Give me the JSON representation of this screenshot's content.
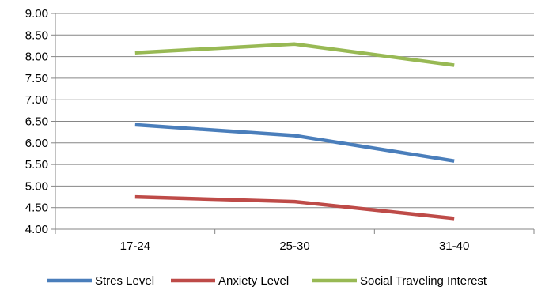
{
  "chart_data": {
    "type": "line",
    "categories": [
      "17-24",
      "25-30",
      "31-40"
    ],
    "ylim": [
      4.0,
      9.0
    ],
    "yticks": [
      "4.00",
      "4.50",
      "5.00",
      "5.50",
      "6.00",
      "6.50",
      "7.00",
      "7.50",
      "8.00",
      "8.50",
      "9.00"
    ],
    "grid": true,
    "legend_position": "bottom",
    "series": [
      {
        "name": "Stres Level",
        "color": "#4a7ebb",
        "values": [
          6.42,
          6.17,
          5.58
        ]
      },
      {
        "name": "Anxiety Level",
        "color": "#be4b48",
        "values": [
          4.75,
          4.64,
          4.25
        ]
      },
      {
        "name": "Social Traveling Interest",
        "color": "#98b954",
        "values": [
          8.09,
          8.29,
          7.8
        ]
      }
    ]
  }
}
